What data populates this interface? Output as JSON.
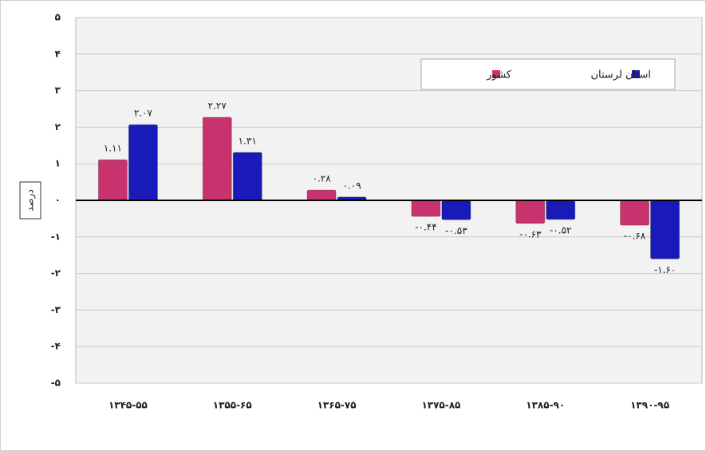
{
  "chart_data": {
    "type": "bar",
    "y_label": "درصد",
    "categories": [
      "۱۳۴۵-۵۵",
      "۱۳۵۵-۶۵",
      "۱۳۶۵-۷۵",
      "۱۳۷۵-۸۵",
      "۱۳۸۵-۹۰",
      "۱۳۹۰-۹۵"
    ],
    "series": [
      {
        "name": "کشور",
        "color": "#c8336e",
        "values": [
          1.11,
          2.27,
          0.28,
          -0.44,
          -0.63,
          -0.68
        ],
        "value_labels": [
          "۱.۱۱",
          "۲.۲۷",
          "۰.۲۸",
          "-۰.۴۴",
          "-۰.۶۳",
          "-۰.۶۸"
        ]
      },
      {
        "name": "استان لرستان",
        "color": "#1a1ab8",
        "values": [
          2.07,
          1.31,
          0.09,
          -0.53,
          -0.52,
          -1.6
        ],
        "value_labels": [
          "۲.۰۷",
          "۱.۳۱",
          "۰.۰۹",
          "-۰.۵۳",
          "-۰.۵۲",
          "-۱.۶۰"
        ]
      }
    ],
    "ylim": [
      -5,
      5
    ],
    "yticks": [
      {
        "value": -5,
        "label": "-۵"
      },
      {
        "value": -4,
        "label": "-۴"
      },
      {
        "value": -3,
        "label": "-۳"
      },
      {
        "value": -2,
        "label": "-۲"
      },
      {
        "value": -1,
        "label": "-۱"
      },
      {
        "value": 0,
        "label": "۰"
      },
      {
        "value": 1,
        "label": "۱"
      },
      {
        "value": 2,
        "label": "۲"
      },
      {
        "value": 3,
        "label": "۳"
      },
      {
        "value": 4,
        "label": "۴"
      },
      {
        "value": 5,
        "label": "۵"
      }
    ],
    "grid": true
  }
}
